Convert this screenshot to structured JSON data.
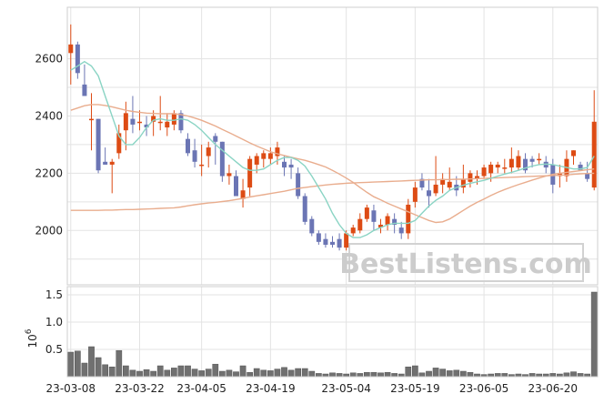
{
  "chart_data": [
    {
      "type": "candlestick",
      "x_ticks": [
        "23-03-08",
        "23-03-22",
        "23-04-05",
        "23-04-19",
        "23-05-04",
        "23-05-19",
        "23-06-05",
        "23-06-20"
      ],
      "y_ticks": [
        2000,
        2200,
        2400,
        2600
      ],
      "ylim": [
        1810,
        2780
      ],
      "grid": true,
      "colors": {
        "up": "#dd4b14",
        "down": "#6b75b4",
        "ma_short": "#8ad4c4",
        "ma_long": "#e9ad8e",
        "grid": "#e3e3e3"
      },
      "ohlc": [
        [
          2620,
          2720,
          2510,
          2650
        ],
        [
          2650,
          2660,
          2530,
          2550
        ],
        [
          2510,
          2580,
          2470,
          2470
        ],
        [
          2390,
          2480,
          2280,
          2390
        ],
        [
          2390,
          2390,
          2200,
          2210
        ],
        [
          2240,
          2290,
          2230,
          2230
        ],
        [
          2230,
          2250,
          2130,
          2240
        ],
        [
          2270,
          2370,
          2250,
          2340
        ],
        [
          2350,
          2450,
          2280,
          2410
        ],
        [
          2390,
          2470,
          2340,
          2370
        ],
        [
          2380,
          2420,
          2350,
          2380
        ],
        [
          2370,
          2400,
          2330,
          2360
        ],
        [
          2380,
          2420,
          2330,
          2400
        ],
        [
          2380,
          2470,
          2350,
          2380
        ],
        [
          2360,
          2410,
          2330,
          2380
        ],
        [
          2370,
          2420,
          2350,
          2410
        ],
        [
          2410,
          2420,
          2340,
          2350
        ],
        [
          2320,
          2340,
          2260,
          2270
        ],
        [
          2280,
          2320,
          2220,
          2240
        ],
        [
          2230,
          2300,
          2190,
          2230
        ],
        [
          2260,
          2310,
          2220,
          2290
        ],
        [
          2330,
          2340,
          2230,
          2310
        ],
        [
          2310,
          2310,
          2170,
          2190
        ],
        [
          2190,
          2230,
          2160,
          2200
        ],
        [
          2190,
          2210,
          2120,
          2120
        ],
        [
          2110,
          2180,
          2080,
          2140
        ],
        [
          2150,
          2260,
          2120,
          2250
        ],
        [
          2230,
          2270,
          2200,
          2260
        ],
        [
          2250,
          2280,
          2220,
          2270
        ],
        [
          2250,
          2290,
          2230,
          2270
        ],
        [
          2260,
          2310,
          2230,
          2290
        ],
        [
          2240,
          2260,
          2190,
          2220
        ],
        [
          2230,
          2250,
          2180,
          2220
        ],
        [
          2200,
          2220,
          2110,
          2120
        ],
        [
          2120,
          2130,
          2020,
          2030
        ],
        [
          2040,
          2050,
          1980,
          1990
        ],
        [
          1990,
          2000,
          1950,
          1960
        ],
        [
          1970,
          1990,
          1940,
          1950
        ],
        [
          1960,
          1980,
          1940,
          1950
        ],
        [
          1970,
          1990,
          1930,
          1940
        ],
        [
          1940,
          2000,
          1930,
          1990
        ],
        [
          1990,
          2020,
          1980,
          2010
        ],
        [
          2000,
          2060,
          1990,
          2040
        ],
        [
          2040,
          2090,
          2030,
          2080
        ],
        [
          2070,
          2090,
          2000,
          2030
        ],
        [
          2010,
          2040,
          1990,
          2020
        ],
        [
          2020,
          2060,
          2000,
          2050
        ],
        [
          2040,
          2060,
          1990,
          2020
        ],
        [
          2010,
          2030,
          1970,
          1990
        ],
        [
          1990,
          2110,
          1970,
          2090
        ],
        [
          2100,
          2170,
          2080,
          2150
        ],
        [
          2180,
          2200,
          2140,
          2150
        ],
        [
          2140,
          2180,
          2080,
          2120
        ],
        [
          2130,
          2260,
          2120,
          2160
        ],
        [
          2160,
          2200,
          2130,
          2180
        ],
        [
          2150,
          2220,
          2140,
          2170
        ],
        [
          2160,
          2190,
          2120,
          2140
        ],
        [
          2150,
          2230,
          2130,
          2180
        ],
        [
          2170,
          2210,
          2150,
          2200
        ],
        [
          2180,
          2210,
          2160,
          2190
        ],
        [
          2190,
          2230,
          2180,
          2220
        ],
        [
          2200,
          2240,
          2170,
          2230
        ],
        [
          2220,
          2240,
          2200,
          2230
        ],
        [
          2220,
          2250,
          2200,
          2220
        ],
        [
          2220,
          2290,
          2200,
          2250
        ],
        [
          2220,
          2280,
          2210,
          2260
        ],
        [
          2250,
          2270,
          2200,
          2210
        ],
        [
          2250,
          2260,
          2220,
          2240
        ],
        [
          2250,
          2270,
          2230,
          2250
        ],
        [
          2240,
          2260,
          2200,
          2220
        ],
        [
          2230,
          2250,
          2130,
          2160
        ],
        [
          2190,
          2230,
          2150,
          2200
        ],
        [
          2190,
          2280,
          2170,
          2250
        ],
        [
          2260,
          2280,
          2230,
          2280
        ],
        [
          2230,
          2240,
          2210,
          2210
        ],
        [
          2200,
          2240,
          2170,
          2180
        ],
        [
          2150,
          2490,
          2140,
          2380
        ]
      ],
      "ma_short": [
        2560,
        2575,
        2590,
        2575,
        2540,
        2470,
        2400,
        2330,
        2300,
        2300,
        2325,
        2360,
        2385,
        2390,
        2385,
        2385,
        2390,
        2385,
        2370,
        2350,
        2325,
        2300,
        2280,
        2260,
        2240,
        2220,
        2210,
        2210,
        2215,
        2230,
        2245,
        2255,
        2255,
        2245,
        2225,
        2190,
        2150,
        2110,
        2060,
        2020,
        1990,
        1975,
        1975,
        1985,
        2000,
        2010,
        2020,
        2025,
        2025,
        2025,
        2035,
        2060,
        2085,
        2105,
        2120,
        2140,
        2150,
        2158,
        2165,
        2170,
        2175,
        2182,
        2190,
        2197,
        2203,
        2210,
        2218,
        2225,
        2230,
        2232,
        2230,
        2225,
        2220,
        2215,
        2215,
        2220,
        2260
      ],
      "ma_long": [
        2420,
        2428,
        2436,
        2440,
        2440,
        2437,
        2432,
        2426,
        2420,
        2416,
        2413,
        2410,
        2409,
        2408,
        2408,
        2408,
        2405,
        2400,
        2393,
        2385,
        2375,
        2365,
        2353,
        2342,
        2330,
        2318,
        2306,
        2295,
        2285,
        2275,
        2268,
        2262,
        2256,
        2250,
        2245,
        2238,
        2230,
        2222,
        2210,
        2197,
        2183,
        2168,
        2150,
        2133,
        2118,
        2107,
        2095,
        2085,
        2075,
        2065,
        2055,
        2045,
        2035,
        2028,
        2030,
        2040,
        2055,
        2070,
        2085,
        2098,
        2110,
        2122,
        2133,
        2143,
        2152,
        2160,
        2168,
        2176,
        2183,
        2190,
        2196,
        2200,
        2203,
        2206,
        2209,
        2212,
        2215
      ],
      "ma_mid": [
        2070,
        2070,
        2070,
        2070,
        2070,
        2071,
        2071,
        2072,
        2073,
        2073,
        2074,
        2075,
        2076,
        2077,
        2078,
        2079,
        2082,
        2086,
        2090,
        2093,
        2096,
        2098,
        2101,
        2104,
        2108,
        2112,
        2117,
        2121,
        2125,
        2129,
        2133,
        2137,
        2142,
        2147,
        2150,
        2153,
        2156,
        2159,
        2161,
        2163,
        2165,
        2166,
        2167,
        2168,
        2169,
        2170,
        2171,
        2172,
        2173,
        2174,
        2175,
        2176,
        2177,
        2177,
        2178,
        2178,
        2179,
        2179,
        2180,
        2181,
        2182,
        2183,
        2184,
        2185,
        2186,
        2187,
        2188,
        2189,
        2190,
        2191,
        2192,
        2193,
        2194,
        2196,
        2198,
        2199,
        2200
      ]
    },
    {
      "type": "bar",
      "ylabel": "10^6",
      "y_ticks": [
        0.5,
        1.0,
        1.5
      ],
      "ylim": [
        0,
        1.65
      ],
      "color": "#707070",
      "values": [
        0.45,
        0.47,
        0.25,
        0.55,
        0.35,
        0.22,
        0.18,
        0.48,
        0.2,
        0.12,
        0.1,
        0.13,
        0.1,
        0.2,
        0.12,
        0.16,
        0.2,
        0.2,
        0.14,
        0.11,
        0.14,
        0.23,
        0.1,
        0.12,
        0.09,
        0.2,
        0.08,
        0.15,
        0.12,
        0.11,
        0.14,
        0.17,
        0.12,
        0.15,
        0.15,
        0.1,
        0.06,
        0.05,
        0.07,
        0.06,
        0.05,
        0.07,
        0.06,
        0.08,
        0.08,
        0.07,
        0.08,
        0.06,
        0.05,
        0.18,
        0.2,
        0.07,
        0.1,
        0.16,
        0.14,
        0.11,
        0.12,
        0.1,
        0.08,
        0.05,
        0.04,
        0.05,
        0.06,
        0.06,
        0.04,
        0.05,
        0.04,
        0.06,
        0.05,
        0.05,
        0.06,
        0.05,
        0.07,
        0.09,
        0.06,
        0.05,
        1.55
      ]
    }
  ],
  "watermark": "BestListens.com"
}
